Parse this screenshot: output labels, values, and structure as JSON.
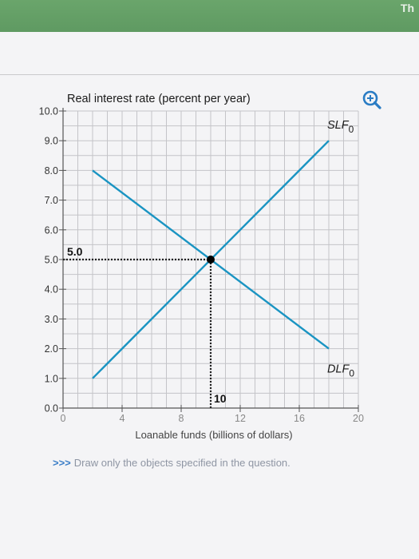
{
  "banner_text": "Th",
  "zoom_icon": "zoom-in-icon",
  "instruction": {
    "arrows": ">>>",
    "text": "Draw only the objects specified in the question."
  },
  "colors": {
    "curve": "#1a94c2",
    "grid": "#c4c4c8",
    "axis": "#555555",
    "accent": "#2a7cc4"
  },
  "chart_data": {
    "type": "line",
    "ylabel": "Real interest rate (percent per year)",
    "xlabel": "Loanable funds (billions of dollars)",
    "xlim": [
      0,
      20
    ],
    "ylim": [
      0,
      10
    ],
    "xticks": [
      0,
      4,
      8,
      12,
      16,
      20
    ],
    "xtick_labels": [
      "0",
      "4",
      "8",
      "12",
      "16",
      "20"
    ],
    "yticks": [
      0,
      1,
      2,
      3,
      4,
      5,
      6,
      7,
      8,
      9,
      10
    ],
    "ytick_labels": [
      "0.0",
      "1.0",
      "2.0",
      "3.0",
      "4.0",
      "5.0",
      "6.0",
      "7.0",
      "8.0",
      "9.0",
      "10.0"
    ],
    "grid": true,
    "series": [
      {
        "name": "SLF",
        "subscript": "0",
        "x": [
          2,
          18
        ],
        "y": [
          1.0,
          9.0
        ]
      },
      {
        "name": "DLF",
        "subscript": "0",
        "x": [
          2,
          18
        ],
        "y": [
          8.0,
          2.0
        ]
      }
    ],
    "equilibrium": {
      "x": 10,
      "y": 5.0,
      "x_label": "10",
      "y_label": "5.0"
    }
  }
}
